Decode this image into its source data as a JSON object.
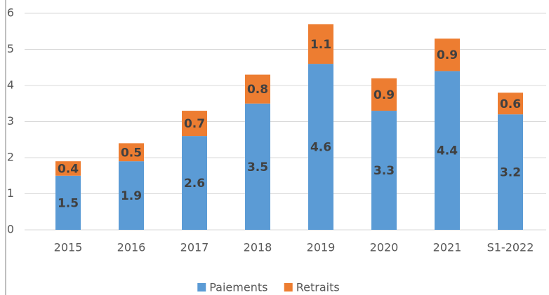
{
  "chart_data": {
    "type": "stacked_bar",
    "categories": [
      "2015",
      "2016",
      "2017",
      "2018",
      "2019",
      "2020",
      "2021",
      "S1-2022"
    ],
    "series": [
      {
        "name": "Paiements",
        "color": "#5b9bd5",
        "values": [
          1.5,
          1.9,
          2.6,
          3.5,
          4.6,
          3.3,
          4.4,
          3.2
        ]
      },
      {
        "name": "Retraits",
        "color": "#ed7d31",
        "values": [
          0.4,
          0.5,
          0.7,
          0.8,
          1.1,
          0.9,
          0.9,
          0.6
        ]
      }
    ],
    "ylim": [
      0,
      6
    ],
    "yticks": [
      0,
      1,
      2,
      3,
      4,
      5,
      6
    ],
    "grid": true,
    "legend": "bottom"
  }
}
